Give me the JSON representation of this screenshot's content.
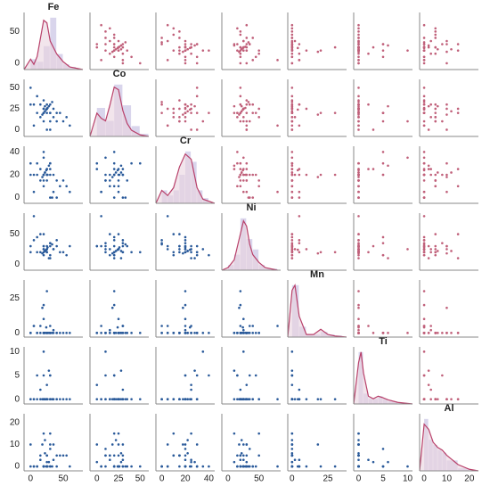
{
  "chart_data": {
    "type": "pairplot",
    "lower_color": "#2a5a9a",
    "upper_color": "#c0607a",
    "hist_color": "#d9d5ec",
    "kde_color": "#b8406a",
    "kde_fill": "#ead3df",
    "variables": [
      {
        "name": "Fe",
        "lim": [
          -10,
          80
        ],
        "ticks": [
          0,
          50
        ],
        "diagonal": {
          "bins": [
            0,
            10,
            20,
            30,
            40,
            50,
            60,
            70
          ],
          "heights": [
            0.2,
            0.15,
            0.45,
            1.0,
            0.3,
            0.1,
            0.05
          ],
          "dlim": [
            0,
            1.1
          ],
          "kde_x": [
            -10,
            0,
            5,
            10,
            15,
            20,
            25,
            30,
            40,
            50,
            60,
            80
          ],
          "kde_y": [
            0,
            0.2,
            0.1,
            0.25,
            0.6,
            0.95,
            0.9,
            0.55,
            0.3,
            0.15,
            0.05,
            0
          ]
        }
      },
      {
        "name": "Co",
        "lim": [
          -8,
          60
        ],
        "ticks": [
          0,
          25,
          50
        ],
        "diagonal": {
          "bins": [
            0,
            10,
            20,
            30,
            40,
            50,
            60
          ],
          "heights": [
            0.55,
            0.3,
            1.0,
            0.6,
            0.2,
            0.05
          ],
          "dlim": [
            0,
            1.1
          ],
          "kde_x": [
            -8,
            0,
            5,
            10,
            15,
            20,
            25,
            30,
            35,
            40,
            50,
            60
          ],
          "kde_y": [
            0,
            0.45,
            0.35,
            0.3,
            0.6,
            0.95,
            0.9,
            0.5,
            0.25,
            0.12,
            0.03,
            0
          ]
        }
      },
      {
        "name": "Cr",
        "lim": [
          -5,
          45
        ],
        "ticks": [
          0,
          20,
          40
        ],
        "diagonal": {
          "bins": [
            0,
            5,
            10,
            15,
            20,
            25,
            30,
            35,
            40
          ],
          "heights": [
            0.25,
            0.15,
            0.25,
            0.55,
            1.0,
            0.8,
            0.25,
            0.1
          ],
          "dlim": [
            0,
            1.1
          ],
          "kde_x": [
            -5,
            0,
            5,
            10,
            15,
            20,
            25,
            30,
            35,
            45
          ],
          "kde_y": [
            0,
            0.25,
            0.15,
            0.3,
            0.7,
            0.95,
            0.85,
            0.3,
            0.08,
            0
          ]
        }
      },
      {
        "name": "Ni",
        "lim": [
          -10,
          85
        ],
        "ticks": [
          0,
          50
        ],
        "diagonal": {
          "bins": [
            0,
            10,
            20,
            30,
            40,
            50,
            60,
            80
          ],
          "heights": [
            0.1,
            0.3,
            1.0,
            0.6,
            0.4,
            0.1,
            0.03
          ],
          "dlim": [
            0,
            1.1
          ],
          "kde_x": [
            -10,
            0,
            10,
            20,
            25,
            30,
            35,
            40,
            50,
            60,
            80
          ],
          "kde_y": [
            0,
            0.05,
            0.2,
            0.7,
            0.95,
            0.85,
            0.5,
            0.3,
            0.15,
            0.05,
            0
          ]
        }
      },
      {
        "name": "Mn",
        "lim": [
          -3,
          38
        ],
        "ticks": [
          0,
          25
        ],
        "diagonal": {
          "bins": [
            0,
            5,
            10,
            15,
            20,
            25,
            30,
            35
          ],
          "heights": [
            1.0,
            0.2,
            0.05,
            0.05,
            0.1,
            0.05,
            0.03
          ],
          "dlim": [
            0,
            1.1
          ],
          "kde_x": [
            -3,
            0,
            2,
            5,
            10,
            15,
            20,
            25,
            30,
            38
          ],
          "kde_y": [
            0,
            0.9,
            1.0,
            0.4,
            0.05,
            0.05,
            0.15,
            0.05,
            0.02,
            0
          ]
        }
      },
      {
        "name": "Ti",
        "lim": [
          -1,
          11
        ],
        "ticks": [
          0,
          5,
          10
        ],
        "diagonal": {
          "bins": [
            0,
            1,
            2,
            3,
            4,
            5,
            6,
            8,
            10
          ],
          "heights": [
            1.0,
            0.2,
            0.1,
            0.1,
            0.15,
            0.1,
            0.05,
            0.02
          ],
          "dlim": [
            0,
            1.1
          ],
          "kde_x": [
            -1,
            0,
            0.5,
            1,
            2,
            3,
            4,
            5,
            6,
            8,
            11
          ],
          "kde_y": [
            0,
            0.8,
            1.0,
            0.6,
            0.15,
            0.1,
            0.15,
            0.12,
            0.08,
            0.03,
            0
          ]
        }
      },
      {
        "name": "Al",
        "lim": [
          -2,
          24
        ],
        "ticks": [
          0,
          10,
          20
        ],
        "diagonal": {
          "bins": [
            0,
            2,
            4,
            6,
            8,
            10,
            15,
            20
          ],
          "heights": [
            1.0,
            0.6,
            0.5,
            0.4,
            0.35,
            0.2,
            0.05
          ],
          "dlim": [
            0,
            1.1
          ],
          "kde_x": [
            -2,
            0,
            2,
            4,
            6,
            8,
            10,
            15,
            20,
            24
          ],
          "kde_y": [
            0,
            0.9,
            0.8,
            0.55,
            0.45,
            0.4,
            0.3,
            0.12,
            0.03,
            0
          ]
        }
      }
    ],
    "observations": [
      [
        20,
        20,
        20,
        30,
        0,
        0,
        0
      ],
      [
        25,
        25,
        15,
        25,
        0,
        0,
        5
      ],
      [
        30,
        10,
        20,
        35,
        0,
        5,
        8
      ],
      [
        0,
        30,
        20,
        30,
        0,
        0,
        10
      ],
      [
        18,
        18,
        18,
        18,
        18,
        0,
        10
      ],
      [
        25,
        0,
        25,
        30,
        0,
        3,
        2
      ],
      [
        40,
        20,
        0,
        40,
        0,
        0,
        0
      ],
      [
        22,
        22,
        22,
        22,
        0,
        0,
        12
      ],
      [
        33,
        33,
        0,
        33,
        0,
        0,
        0
      ],
      [
        15,
        30,
        25,
        20,
        5,
        2,
        3
      ],
      [
        10,
        40,
        30,
        20,
        0,
        0,
        0
      ],
      [
        50,
        10,
        15,
        20,
        0,
        0,
        5
      ],
      [
        60,
        5,
        5,
        30,
        0,
        0,
        0
      ],
      [
        28,
        28,
        28,
        10,
        0,
        6,
        2
      ],
      [
        20,
        25,
        10,
        50,
        0,
        0,
        15
      ],
      [
        35,
        15,
        20,
        25,
        2,
        0,
        3
      ],
      [
        25,
        25,
        25,
        25,
        0,
        0,
        0
      ],
      [
        20,
        35,
        15,
        30,
        0,
        0,
        0
      ],
      [
        30,
        20,
        30,
        15,
        0,
        5,
        0
      ],
      [
        5,
        30,
        20,
        40,
        5,
        0,
        0
      ],
      [
        24,
        24,
        24,
        24,
        4,
        0,
        0
      ],
      [
        45,
        20,
        10,
        20,
        0,
        0,
        5
      ],
      [
        20,
        20,
        40,
        15,
        0,
        5,
        0
      ],
      [
        0,
        50,
        30,
        20,
        0,
        0,
        0
      ],
      [
        30,
        0,
        30,
        30,
        0,
        0,
        10
      ],
      [
        20,
        20,
        20,
        20,
        20,
        0,
        0
      ],
      [
        35,
        25,
        5,
        25,
        0,
        0,
        10
      ],
      [
        10,
        20,
        20,
        45,
        0,
        5,
        0
      ],
      [
        25,
        30,
        20,
        20,
        0,
        0,
        5
      ],
      [
        15,
        15,
        15,
        50,
        0,
        0,
        5
      ],
      [
        30,
        30,
        0,
        35,
        5,
        0,
        0
      ],
      [
        55,
        15,
        10,
        15,
        0,
        0,
        5
      ],
      [
        20,
        10,
        35,
        25,
        0,
        10,
        0
      ],
      [
        25,
        20,
        20,
        20,
        30,
        0,
        0
      ],
      [
        30,
        20,
        25,
        10,
        0,
        0,
        15
      ],
      [
        5,
        5,
        5,
        80,
        5,
        0,
        0
      ],
      [
        22,
        28,
        22,
        22,
        0,
        0,
        6
      ],
      [
        40,
        10,
        15,
        30,
        0,
        0,
        5
      ],
      [
        20,
        25,
        20,
        25,
        10,
        0,
        0
      ],
      [
        26,
        26,
        20,
        28,
        0,
        0,
        0
      ]
    ]
  }
}
